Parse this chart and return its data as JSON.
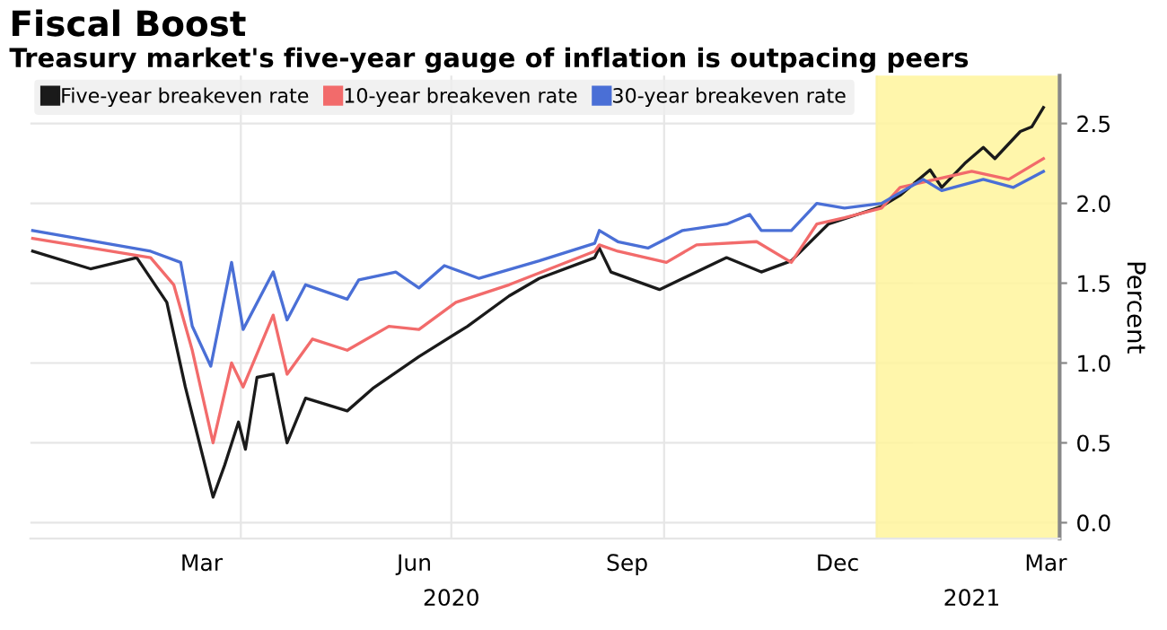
{
  "chart_data": {
    "type": "line",
    "title": "Fiscal Boost",
    "subtitle": "Treasury market's five-year gauge of inflation is outpacing peers",
    "ylabel": "Percent",
    "xlim": [
      "2020-01-01",
      "2021-03-21"
    ],
    "xticks": [
      {
        "value": "2020-03-15",
        "label": "Mar"
      },
      {
        "value": "2020-04-01",
        "label": null
      },
      {
        "value": "2020-06-15",
        "label": "Jun"
      },
      {
        "value": "2020-07-01",
        "label": null
      },
      {
        "value": "2020-09-15",
        "label": "Sep"
      },
      {
        "value": "2020-10-01",
        "label": null
      },
      {
        "value": "2020-12-15",
        "label": "Dec"
      },
      {
        "value": "2021-01-01",
        "label": null
      },
      {
        "value": "2021-03-15",
        "label": "Mar"
      }
    ],
    "x2lim": [
      "2020-01-01",
      "2021-03-21"
    ],
    "x2ticks": [
      {
        "value": "2020-07-01",
        "label": "2020"
      },
      {
        "value": "2021-02-11",
        "label": "2021"
      }
    ],
    "ylim": [
      -0.1,
      2.8
    ],
    "yticks": [
      {
        "value": 0,
        "label": "0.0"
      },
      {
        "value": 0.5,
        "label": "0.5"
      },
      {
        "value": 1,
        "label": "1.0"
      },
      {
        "value": 1.5,
        "label": "1.5"
      },
      {
        "value": 2,
        "label": "2.0"
      },
      {
        "value": 2.5,
        "label": "2.5"
      }
    ],
    "grid": true,
    "legend": "top left",
    "marker": "none",
    "line_style": "solid",
    "bands": [
      {
        "axis": "x",
        "from": "2021-01-01",
        "to": "2021-03-21",
        "color": "#fff59d"
      }
    ],
    "series": [
      {
        "name": "Five-year breakeven rate",
        "color": "#1a1a1a",
        "x": [
          "2020-01-02",
          "2020-01-27",
          "2020-02-16",
          "2020-02-29",
          "2020-03-08",
          "2020-03-20",
          "2020-03-25",
          "2020-03-31",
          "2020-04-03",
          "2020-04-08",
          "2020-04-15",
          "2020-04-21",
          "2020-04-29",
          "2020-05-17",
          "2020-05-28",
          "2020-06-17",
          "2020-07-08",
          "2020-07-26",
          "2020-08-08",
          "2020-09-01",
          "2020-09-03",
          "2020-09-08",
          "2020-09-29",
          "2020-10-28",
          "2020-11-12",
          "2020-11-25",
          "2020-12-11",
          "2021-01-03",
          "2021-01-11",
          "2021-01-24",
          "2021-01-29",
          "2021-02-08",
          "2021-02-16",
          "2021-02-21",
          "2021-03-04",
          "2021-03-09",
          "2021-03-14"
        ],
        "values": [
          1.7,
          1.59,
          1.66,
          1.38,
          0.85,
          0.16,
          0.36,
          0.63,
          0.46,
          0.91,
          0.93,
          0.5,
          0.78,
          0.7,
          0.84,
          1.04,
          1.23,
          1.42,
          1.53,
          1.66,
          1.72,
          1.57,
          1.46,
          1.66,
          1.57,
          1.64,
          1.87,
          1.98,
          2.05,
          2.21,
          2.1,
          2.25,
          2.35,
          2.28,
          2.45,
          2.48,
          2.6
        ]
      },
      {
        "name": "10-year breakeven rate",
        "color": "#f26b6b",
        "x": [
          "2020-01-02",
          "2020-02-22",
          "2020-03-03",
          "2020-03-11",
          "2020-03-20",
          "2020-03-28",
          "2020-04-02",
          "2020-04-15",
          "2020-04-21",
          "2020-05-02",
          "2020-05-17",
          "2020-06-04",
          "2020-06-17",
          "2020-07-03",
          "2020-07-26",
          "2020-09-01",
          "2020-09-03",
          "2020-09-11",
          "2020-10-02",
          "2020-10-15",
          "2020-11-10",
          "2020-11-25",
          "2020-12-06",
          "2020-12-18",
          "2021-01-03",
          "2021-01-11",
          "2021-02-11",
          "2021-02-27",
          "2021-03-14"
        ],
        "values": [
          1.78,
          1.66,
          1.49,
          1.08,
          0.5,
          1.0,
          0.85,
          1.3,
          0.93,
          1.15,
          1.08,
          1.23,
          1.21,
          1.38,
          1.49,
          1.7,
          1.74,
          1.7,
          1.63,
          1.74,
          1.76,
          1.63,
          1.87,
          1.91,
          1.97,
          2.1,
          2.2,
          2.15,
          2.28
        ]
      },
      {
        "name": "30-year breakeven rate",
        "color": "#4a6fd6",
        "x": [
          "2020-01-02",
          "2020-02-22",
          "2020-03-06",
          "2020-03-11",
          "2020-03-19",
          "2020-03-28",
          "2020-04-02",
          "2020-04-15",
          "2020-04-21",
          "2020-04-29",
          "2020-05-17",
          "2020-05-22",
          "2020-06-07",
          "2020-06-17",
          "2020-06-28",
          "2020-07-13",
          "2020-08-08",
          "2020-09-01",
          "2020-09-03",
          "2020-09-11",
          "2020-09-24",
          "2020-10-09",
          "2020-10-28",
          "2020-11-07",
          "2020-11-12",
          "2020-11-25",
          "2020-12-06",
          "2020-12-18",
          "2021-01-03",
          "2021-01-21",
          "2021-01-29",
          "2021-02-16",
          "2021-03-01",
          "2021-03-14"
        ],
        "values": [
          1.83,
          1.7,
          1.63,
          1.23,
          0.98,
          1.63,
          1.21,
          1.57,
          1.27,
          1.49,
          1.4,
          1.52,
          1.57,
          1.47,
          1.61,
          1.53,
          1.64,
          1.75,
          1.83,
          1.76,
          1.72,
          1.83,
          1.87,
          1.93,
          1.83,
          1.83,
          2.0,
          1.97,
          2.0,
          2.15,
          2.08,
          2.15,
          2.1,
          2.2
        ]
      }
    ]
  }
}
